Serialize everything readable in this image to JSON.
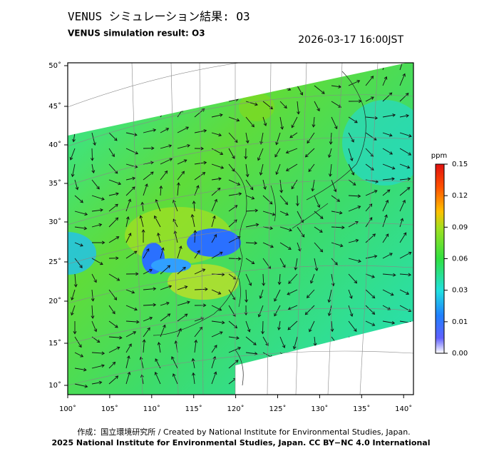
{
  "header": {
    "title": "VENUS シミュレーション結果: O3",
    "subtitle": "VENUS simulation result: O3",
    "timestamp": "2026-03-17 16:00JST"
  },
  "map": {
    "lon_ticks": [
      "100˚",
      "105˚",
      "110˚",
      "115˚",
      "120˚",
      "125˚",
      "130˚",
      "135˚",
      "140˚"
    ],
    "lat_ticks": [
      "50˚",
      "45˚",
      "40˚",
      "35˚",
      "30˚",
      "25˚",
      "20˚",
      "15˚",
      "10˚"
    ]
  },
  "colorbar": {
    "unit": "ppm",
    "ticks": [
      "0.15",
      "0.12",
      "0.09",
      "0.06",
      "0.03",
      "0.01",
      "0.00"
    ]
  },
  "footer": {
    "line1": "作成：国立環境研究所 / Created by National Institute for Environmental Studies, Japan.",
    "line2": "2025 National Institute for Environmental Studies, Japan. CC BY−NC 4.0 International"
  }
}
